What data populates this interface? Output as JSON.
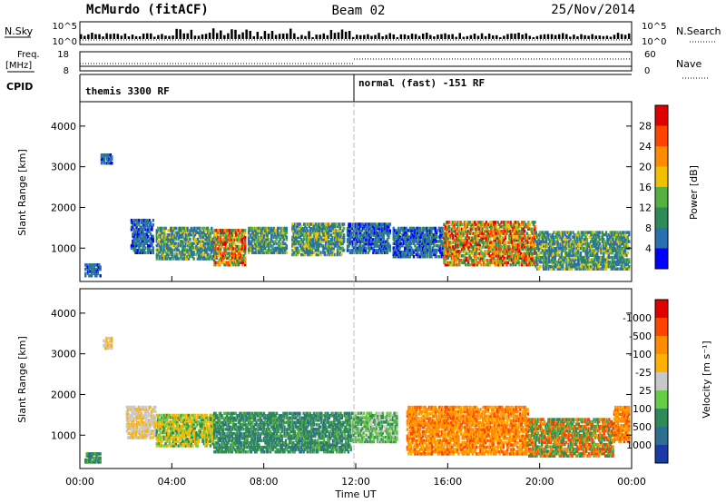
{
  "header": {
    "station": "McMurdo (fitACF)",
    "beam": "Beam 02",
    "date": "25/Nov/2014"
  },
  "strip_panels": {
    "nsky_label": "N.Sky",
    "nsky_ticks": [
      "10^5",
      "10^0"
    ],
    "nsearch_label": "N.Search",
    "nsearch_ticks": [
      "10^5",
      "10^0"
    ],
    "freq_label_1": "Freq.",
    "freq_label_2": "[MHz]",
    "freq_ticks": [
      "18",
      "8"
    ],
    "nave_label": "Nave",
    "nave_ticks": [
      "60",
      "0"
    ],
    "cpid_label": "CPID",
    "cpid_entries": [
      "themis 3300 RF",
      "normal (fast) -151 RF"
    ]
  },
  "chart_data": [
    {
      "type": "heatmap",
      "name": "power",
      "ylabel": "Slant Range [km]",
      "yticks": [
        "1000",
        "2000",
        "3000",
        "4000"
      ],
      "ylim": [
        180,
        4600
      ],
      "xlim": [
        0,
        24
      ],
      "colorbar_label": "Power [dB]",
      "colorbar_ticks": [
        "4",
        "8",
        "12",
        "16",
        "20",
        "24",
        "28"
      ],
      "colorbar_colors": [
        "#0000ff",
        "#2a6fb0",
        "#2e8b57",
        "#55b040",
        "#f0c000",
        "#ff8c00",
        "#ff4400",
        "#e00000"
      ],
      "echo_regions": [
        {
          "t0": 0.2,
          "t1": 0.9,
          "r0": 280,
          "r1": 600,
          "level": "low"
        },
        {
          "t0": 0.9,
          "t1": 1.4,
          "r0": 3050,
          "r1": 3300,
          "level": "low"
        },
        {
          "t0": 2.2,
          "t1": 3.2,
          "r0": 850,
          "r1": 1700,
          "level": "low"
        },
        {
          "t0": 3.3,
          "t1": 5.8,
          "r0": 700,
          "r1": 1500,
          "level": "mid"
        },
        {
          "t0": 5.8,
          "t1": 7.2,
          "r0": 550,
          "r1": 1450,
          "level": "high"
        },
        {
          "t0": 7.3,
          "t1": 9.0,
          "r0": 850,
          "r1": 1500,
          "level": "mid"
        },
        {
          "t0": 9.2,
          "t1": 11.5,
          "r0": 800,
          "r1": 1600,
          "level": "mid"
        },
        {
          "t0": 11.6,
          "t1": 13.5,
          "r0": 850,
          "r1": 1600,
          "level": "low"
        },
        {
          "t0": 13.6,
          "t1": 15.8,
          "r0": 750,
          "r1": 1500,
          "level": "low"
        },
        {
          "t0": 15.8,
          "t1": 19.8,
          "r0": 550,
          "r1": 1650,
          "level": "high"
        },
        {
          "t0": 19.8,
          "t1": 23.9,
          "r0": 450,
          "r1": 1400,
          "level": "mid"
        }
      ]
    },
    {
      "type": "heatmap",
      "name": "velocity",
      "ylabel": "Slant Range [km]",
      "yticks": [
        "1000",
        "2000",
        "3000",
        "4000"
      ],
      "ylim": [
        180,
        4600
      ],
      "xlim": [
        0,
        24
      ],
      "xticks": [
        "00:00",
        "04:00",
        "08:00",
        "12:00",
        "16:00",
        "20:00",
        "00:00"
      ],
      "xlabel": "Time UT",
      "colorbar_label": "Velocity [m s⁻¹]",
      "colorbar_ticks": [
        "1000",
        "500",
        "100",
        "25",
        "-25",
        "-100",
        "-500",
        "-1000"
      ],
      "colorbar_colors": [
        "#1a3aa8",
        "#2e6e8e",
        "#2e8b57",
        "#66cc44",
        "#c8c8c8",
        "#ffb000",
        "#ff8c00",
        "#ff4400",
        "#e00000"
      ],
      "echo_regions": [
        {
          "t0": 0.2,
          "t1": 0.9,
          "r0": 300,
          "r1": 550,
          "level": "pos"
        },
        {
          "t0": 1.0,
          "t1": 1.4,
          "r0": 3100,
          "r1": 3400,
          "level": "zero"
        },
        {
          "t0": 2.0,
          "t1": 3.3,
          "r0": 900,
          "r1": 1700,
          "level": "zero"
        },
        {
          "t0": 3.3,
          "t1": 5.8,
          "r0": 700,
          "r1": 1500,
          "level": "neg_slow"
        },
        {
          "t0": 5.8,
          "t1": 11.8,
          "r0": 550,
          "r1": 1550,
          "level": "pos"
        },
        {
          "t0": 11.8,
          "t1": 13.8,
          "r0": 800,
          "r1": 1550,
          "level": "pos_slow"
        },
        {
          "t0": 14.2,
          "t1": 19.5,
          "r0": 500,
          "r1": 1700,
          "level": "neg"
        },
        {
          "t0": 19.5,
          "t1": 23.2,
          "r0": 450,
          "r1": 1400,
          "level": "mixed"
        },
        {
          "t0": 23.2,
          "t1": 23.9,
          "r0": 800,
          "r1": 1700,
          "level": "neg"
        }
      ]
    }
  ],
  "colors": {
    "axis": "#000000",
    "divider": "#bbbbbb"
  }
}
